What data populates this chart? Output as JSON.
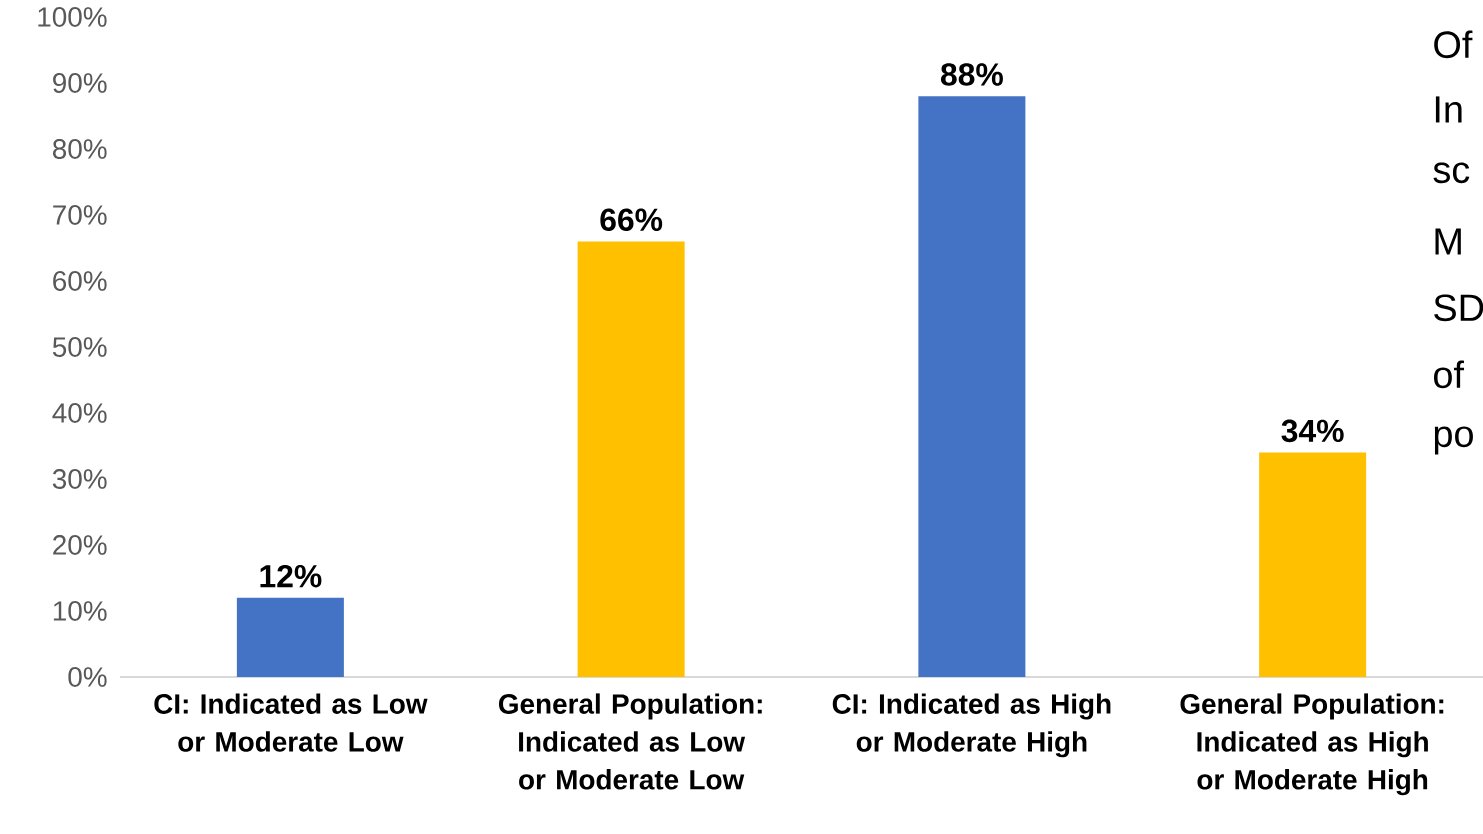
{
  "chart_data": {
    "type": "bar",
    "categories": [
      "CI: Indicated as Low or Moderate Low",
      "General Population: Indicated as Low or Moderate Low",
      "CI: Indicated as High or Moderate High",
      "General Population: Indicated as High or Moderate High"
    ],
    "values": [
      12,
      66,
      88,
      34
    ],
    "colors": [
      "#4472c4",
      "#ffc000",
      "#4472c4",
      "#ffc000"
    ],
    "value_labels": [
      "12%",
      "66%",
      "88%",
      "34%"
    ],
    "ylim": [
      0,
      100
    ],
    "yticks": [
      {
        "value": 0,
        "label": "0%"
      },
      {
        "value": 10,
        "label": "10%"
      },
      {
        "value": 20,
        "label": "20%"
      },
      {
        "value": 30,
        "label": "30%"
      },
      {
        "value": 40,
        "label": "40%"
      },
      {
        "value": 50,
        "label": "50%"
      },
      {
        "value": 60,
        "label": "60%"
      },
      {
        "value": 70,
        "label": "70%"
      },
      {
        "value": 80,
        "label": "80%"
      },
      {
        "value": 90,
        "label": "90%"
      },
      {
        "value": 100,
        "label": "100%"
      }
    ],
    "grid": false,
    "annotations": [
      "Of",
      "In",
      "sc",
      "M",
      "SD",
      "of",
      "po"
    ]
  }
}
